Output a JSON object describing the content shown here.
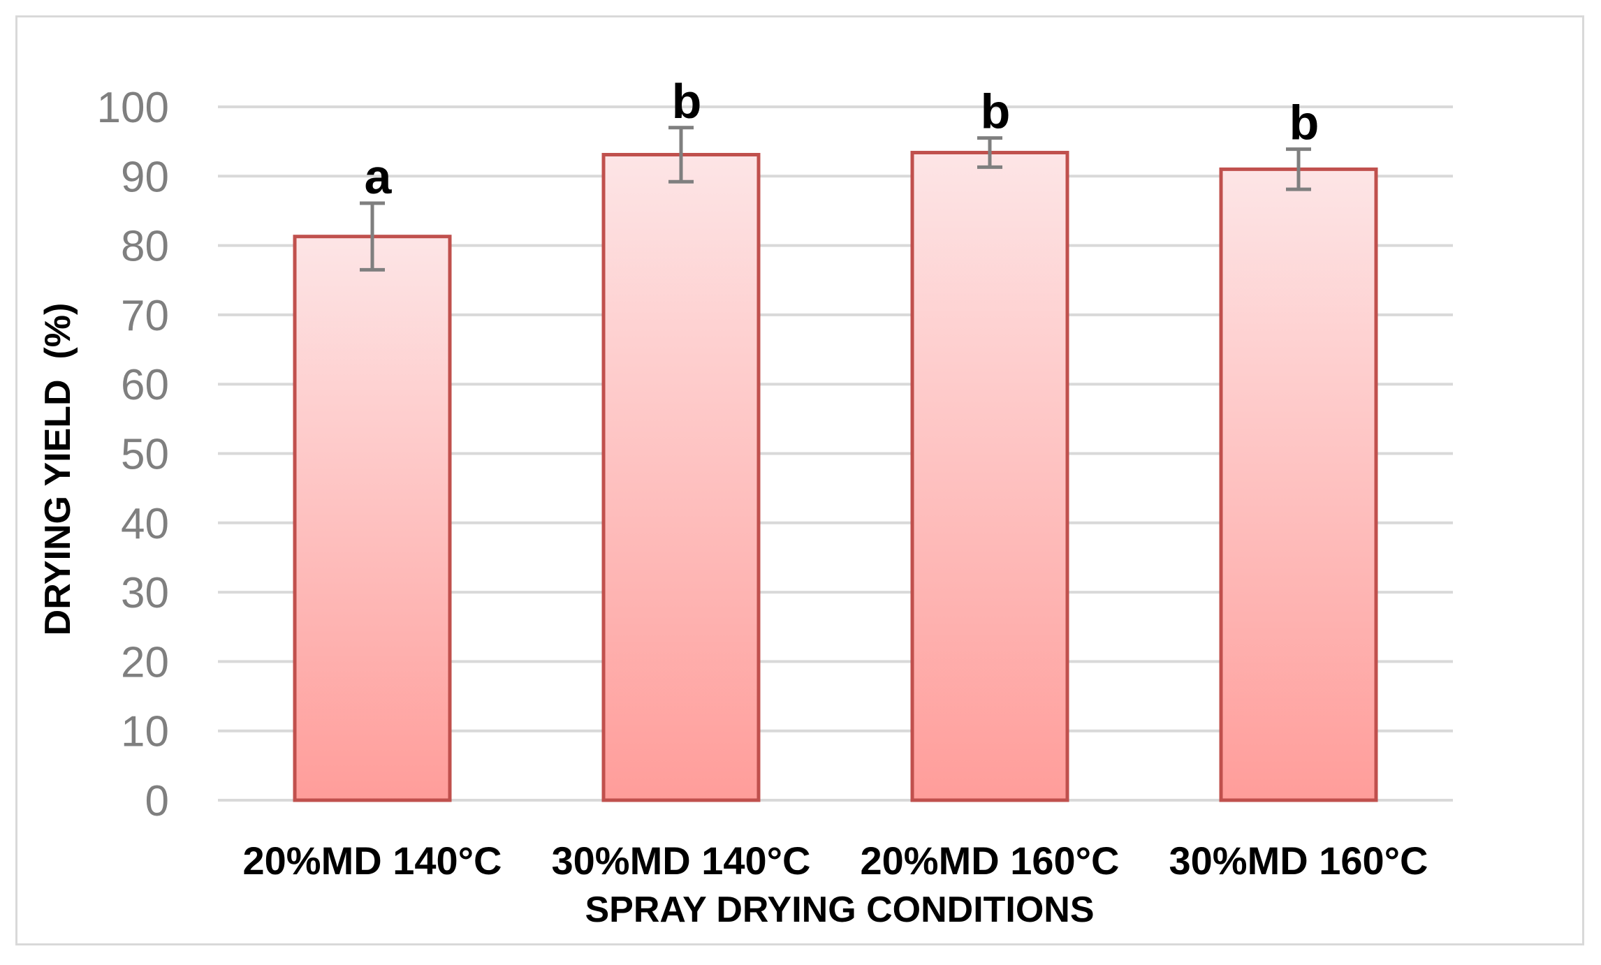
{
  "chart_data": {
    "type": "bar",
    "categories": [
      "20%MD 140°C",
      "30%MD 140°C",
      "20%MD 160°C",
      "30%MD 160°C"
    ],
    "values": [
      81.3,
      93.1,
      93.4,
      91.0
    ],
    "error": [
      4.8,
      3.9,
      2.1,
      2.9
    ],
    "significance": [
      "a",
      "b",
      "b",
      "b"
    ],
    "xlabel": "SPRAY DRYING CONDITIONS",
    "ylabel": "DRYING YIELD  (%)",
    "ylim": [
      0,
      100
    ],
    "yticks": [
      "0",
      "10",
      "20",
      "30",
      "40",
      "50",
      "60",
      "70",
      "80",
      "90",
      "100"
    ],
    "grid": true,
    "colors": {
      "bar_fill_top": "#fde5e6",
      "bar_fill_bottom": "#ff9d9a",
      "bar_border": "#c0504d",
      "error_bar": "#7f7f7f",
      "gridline": "#d9d9d9"
    }
  }
}
